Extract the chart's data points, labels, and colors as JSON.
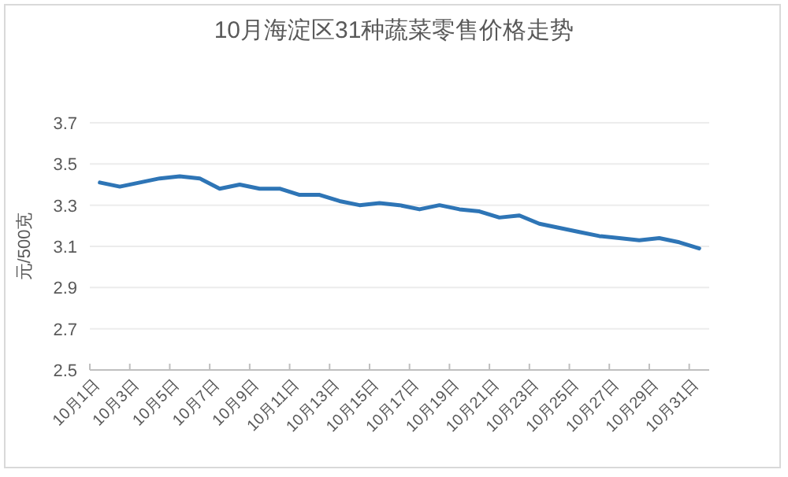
{
  "chart_data": {
    "type": "line",
    "title": "10月海淀区31种蔬菜零售价格走势",
    "ylabel": "元/500克",
    "categories": [
      "10月1日",
      null,
      "10月3日",
      null,
      "10月5日",
      null,
      "10月7日",
      null,
      "10月9日",
      null,
      "10月11日",
      null,
      "10月13日",
      null,
      "10月15日",
      null,
      "10月17日",
      null,
      "10月19日",
      null,
      "10月21日",
      null,
      "10月23日",
      null,
      "10月25日",
      null,
      "10月27日",
      null,
      "10月29日",
      null,
      "10月31日"
    ],
    "series": [
      {
        "color": "#2e75b6",
        "values": [
          3.41,
          3.39,
          3.41,
          3.43,
          3.44,
          3.43,
          3.38,
          3.4,
          3.38,
          3.38,
          3.35,
          3.35,
          3.32,
          3.3,
          3.31,
          3.3,
          3.28,
          3.3,
          3.28,
          3.27,
          3.24,
          3.25,
          3.21,
          3.19,
          3.17,
          3.15,
          3.14,
          3.13,
          3.14,
          3.12,
          3.09
        ]
      }
    ],
    "ylim": [
      2.5,
      3.7
    ],
    "yticks": [
      2.5,
      2.7,
      2.9,
      3.1,
      3.3,
      3.5,
      3.7
    ],
    "grid": "y",
    "marker": "none",
    "line_style": "solid"
  }
}
